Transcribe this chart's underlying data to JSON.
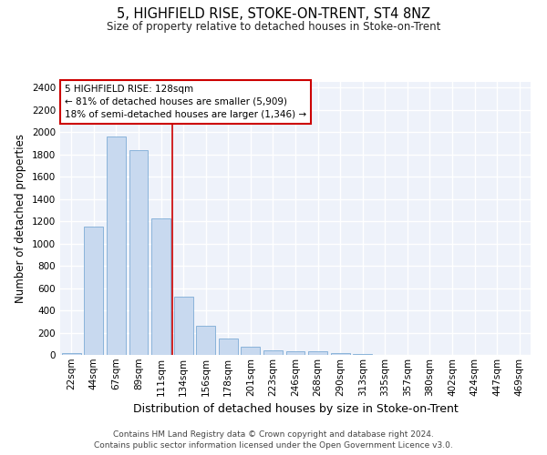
{
  "title": "5, HIGHFIELD RISE, STOKE-ON-TRENT, ST4 8NZ",
  "subtitle": "Size of property relative to detached houses in Stoke-on-Trent",
  "xlabel": "Distribution of detached houses by size in Stoke-on-Trent",
  "ylabel": "Number of detached properties",
  "footer_line1": "Contains HM Land Registry data © Crown copyright and database right 2024.",
  "footer_line2": "Contains public sector information licensed under the Open Government Licence v3.0.",
  "annotation_title": "5 HIGHFIELD RISE: 128sqm",
  "annotation_line2": "← 81% of detached houses are smaller (5,909)",
  "annotation_line3": "18% of semi-detached houses are larger (1,346) →",
  "bar_color": "#c8d9ef",
  "bar_edge_color": "#6aa0d0",
  "vline_color": "#cc0000",
  "annotation_box_edge": "#cc0000",
  "background_color": "#eef2fa",
  "grid_color": "#ffffff",
  "categories": [
    "22sqm",
    "44sqm",
    "67sqm",
    "89sqm",
    "111sqm",
    "134sqm",
    "156sqm",
    "178sqm",
    "201sqm",
    "223sqm",
    "246sqm",
    "268sqm",
    "290sqm",
    "313sqm",
    "335sqm",
    "357sqm",
    "380sqm",
    "402sqm",
    "424sqm",
    "447sqm",
    "469sqm"
  ],
  "values": [
    20,
    1155,
    1960,
    1840,
    1225,
    520,
    265,
    150,
    75,
    42,
    35,
    30,
    20,
    8,
    3,
    2,
    2,
    1,
    1,
    1,
    1
  ],
  "vline_x_index": 4.5,
  "ylim": [
    0,
    2450
  ],
  "yticks": [
    0,
    200,
    400,
    600,
    800,
    1000,
    1200,
    1400,
    1600,
    1800,
    2000,
    2200,
    2400
  ]
}
